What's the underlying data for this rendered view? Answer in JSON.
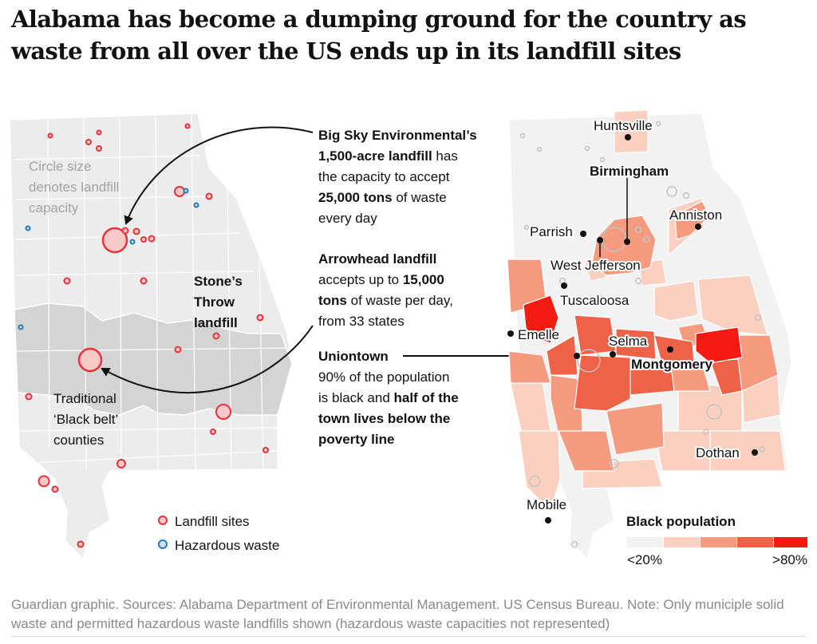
{
  "headline": "Alabama has become a dumping ground for the country as waste from all over the US ends up in its landfill sites",
  "left_map": {
    "size_note": [
      "Circle size",
      "denotes landfill",
      "capacity"
    ],
    "black_belt_label": [
      "Traditional",
      "‘Black belt’",
      "counties"
    ],
    "stones_throw_label": [
      "Stone’s",
      "Throw",
      "landfill"
    ],
    "legend": {
      "landfill": "Landfill sites",
      "hazardous": "Hazardous waste"
    }
  },
  "annotations": {
    "big_sky": {
      "lines": [
        [
          {
            "t": "Big Sky Environmental’s",
            "b": true
          }
        ],
        [
          {
            "t": "1,500-acre landfill",
            "b": true
          },
          {
            "t": " has",
            "b": false
          }
        ],
        [
          {
            "t": "the capacity to accept",
            "b": false
          }
        ],
        [
          {
            "t": "25,000 tons",
            "b": true
          },
          {
            "t": " of waste",
            "b": false
          }
        ],
        [
          {
            "t": "every day",
            "b": false
          }
        ]
      ]
    },
    "arrowhead": {
      "lines": [
        [
          {
            "t": "Arrowhead landfill",
            "b": true
          }
        ],
        [
          {
            "t": "accepts up to ",
            "b": false
          },
          {
            "t": "15,000",
            "b": true
          }
        ],
        [
          {
            "t": "tons",
            "b": true
          },
          {
            "t": " of waste per day,",
            "b": false
          }
        ],
        [
          {
            "t": "from 33 states",
            "b": false
          }
        ]
      ]
    },
    "uniontown": {
      "lines": [
        [
          {
            "t": "Uniontown",
            "b": true
          }
        ],
        [
          {
            "t": "90% of the population",
            "b": false
          }
        ],
        [
          {
            "t": "is black and ",
            "b": false
          },
          {
            "t": "half of the",
            "b": true
          }
        ],
        [
          {
            "t": "town lives below the",
            "b": true
          }
        ],
        [
          {
            "t": "poverty line",
            "b": true
          }
        ]
      ]
    }
  },
  "cities": {
    "huntsville": "Huntsville",
    "birmingham": "Birmingham",
    "anniston": "Anniston",
    "parrish": "Parrish",
    "west_jefferson": "West Jefferson",
    "tuscaloosa": "Tuscaloosa",
    "emelle": "Emelle",
    "selma": "Selma",
    "montgomery": "Montgomery",
    "dothan": "Dothan",
    "mobile": "Mobile"
  },
  "legend_black_population": {
    "title": "Black population",
    "min_label": "<20%",
    "max_label": ">80%",
    "colors": [
      "#f2f2f2",
      "#fbd0c0",
      "#f69a80",
      "#ee6248",
      "#f51a12"
    ]
  },
  "colors": {
    "landfill": "#e8313a",
    "hazardous": "#2b7ab0",
    "state_fill": "#ececec",
    "black_belt_fill": "#d5d5d5"
  },
  "source": "Guardian graphic. Sources: Alabama Department of Environmental Management. US Census Bureau. Note: Only municiple solid waste and permitted hazardous waste landfills shown (hazardous waste capacities not represented)"
}
